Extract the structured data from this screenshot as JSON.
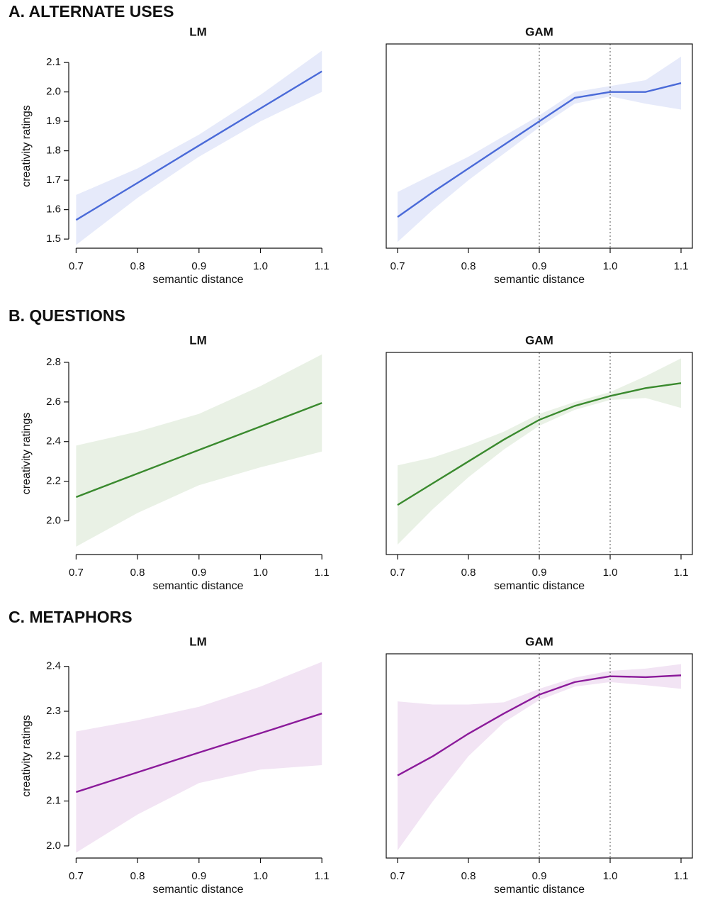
{
  "sections": [
    "A. ALTERNATE USES",
    "B. QUESTIONS",
    "C. METAPHORS"
  ],
  "chart_data": [
    {
      "type": "line",
      "title": "LM",
      "x_label": "semantic distance",
      "y_label": "creativity ratings",
      "x": [
        0.7,
        0.8,
        0.9,
        1.0,
        1.1
      ],
      "series": [
        {
          "color": "#4a6ad8",
          "band_color": "#e6eafa",
          "values": [
            1.565,
            1.691,
            1.818,
            1.944,
            2.07
          ],
          "lower": [
            1.48,
            1.64,
            1.78,
            1.9,
            2.0
          ],
          "upper": [
            1.65,
            1.74,
            1.855,
            1.99,
            2.14
          ]
        }
      ],
      "xlim": [
        0.688,
        1.109
      ],
      "ylim": [
        1.469,
        2.163
      ],
      "xticks": [
        0.7,
        0.8,
        0.9,
        {
          "value": 1.0,
          "label": "1.0"
        },
        1.1
      ],
      "yticks": [
        1.5,
        1.6,
        1.7,
        1.8,
        1.9,
        {
          "value": 2.0,
          "label": "2.0"
        },
        2.1
      ]
    },
    {
      "type": "line",
      "title": "GAM",
      "x_label": "semantic distance",
      "x": [
        0.7,
        0.75,
        0.8,
        0.85,
        0.9,
        0.95,
        1.0,
        1.05,
        1.1
      ],
      "series": [
        {
          "color": "#4a6ad8",
          "band_color": "#e6eafa",
          "values": [
            1.575,
            1.66,
            1.74,
            1.82,
            1.9,
            1.98,
            2.0,
            2.0,
            2.03
          ],
          "lower": [
            1.49,
            1.6,
            1.7,
            1.79,
            1.88,
            1.96,
            1.985,
            1.96,
            1.94
          ],
          "upper": [
            1.66,
            1.72,
            1.78,
            1.85,
            1.92,
            2.0,
            2.02,
            2.04,
            2.12
          ]
        }
      ],
      "xlim": [
        0.684,
        1.116
      ],
      "ylim": [
        1.469,
        2.163
      ],
      "xticks": [
        0.7,
        0.8,
        0.9,
        {
          "value": 1.0,
          "label": "1.0"
        },
        1.1
      ],
      "vlines": [
        0.9,
        1.0
      ]
    },
    {
      "type": "line",
      "title": "LM",
      "x_label": "semantic distance",
      "y_label": "creativity ratings",
      "x": [
        0.7,
        0.8,
        0.9,
        1.0,
        1.1
      ],
      "series": [
        {
          "color": "#3a8a2e",
          "band_color": "#e9f1e5",
          "values": [
            2.12,
            2.239,
            2.358,
            2.476,
            2.595
          ],
          "lower": [
            1.87,
            2.04,
            2.18,
            2.27,
            2.35
          ],
          "upper": [
            2.38,
            2.45,
            2.54,
            2.68,
            2.84
          ]
        }
      ],
      "xlim": [
        0.688,
        1.109
      ],
      "ylim": [
        1.83,
        2.85
      ],
      "xticks": [
        0.7,
        0.8,
        0.9,
        {
          "value": 1.0,
          "label": "1.0"
        },
        1.1
      ],
      "yticks": [
        {
          "value": 2.0,
          "label": "2.0"
        },
        2.2,
        2.4,
        2.6,
        2.8
      ]
    },
    {
      "type": "line",
      "title": "GAM",
      "x_label": "semantic distance",
      "x": [
        0.7,
        0.75,
        0.8,
        0.85,
        0.9,
        0.95,
        1.0,
        1.05,
        1.1
      ],
      "series": [
        {
          "color": "#3a8a2e",
          "band_color": "#e9f1e5",
          "values": [
            2.08,
            2.19,
            2.3,
            2.41,
            2.51,
            2.58,
            2.63,
            2.67,
            2.695
          ],
          "lower": [
            1.88,
            2.06,
            2.22,
            2.36,
            2.48,
            2.56,
            2.61,
            2.62,
            2.57
          ],
          "upper": [
            2.28,
            2.32,
            2.38,
            2.45,
            2.54,
            2.6,
            2.65,
            2.73,
            2.82
          ]
        }
      ],
      "xlim": [
        0.684,
        1.116
      ],
      "ylim": [
        1.83,
        2.85
      ],
      "xticks": [
        0.7,
        0.8,
        0.9,
        {
          "value": 1.0,
          "label": "1.0"
        },
        1.1
      ],
      "vlines": [
        0.9,
        1.0
      ]
    },
    {
      "type": "line",
      "title": "LM",
      "x_label": "semantic distance",
      "y_label": "creativity ratings",
      "x": [
        0.7,
        0.8,
        0.9,
        1.0,
        1.1
      ],
      "series": [
        {
          "color": "#8b1a9a",
          "band_color": "#f2e4f4",
          "values": [
            2.12,
            2.164,
            2.208,
            2.251,
            2.295
          ],
          "lower": [
            1.985,
            2.07,
            2.14,
            2.17,
            2.18
          ],
          "upper": [
            2.255,
            2.28,
            2.31,
            2.355,
            2.41
          ]
        }
      ],
      "xlim": [
        0.688,
        1.109
      ],
      "ylim": [
        1.973,
        2.428
      ],
      "xticks": [
        0.7,
        0.8,
        0.9,
        {
          "value": 1.0,
          "label": "1.0"
        },
        1.1
      ],
      "yticks": [
        {
          "value": 2.0,
          "label": "2.0"
        },
        2.1,
        2.2,
        2.3,
        2.4
      ]
    },
    {
      "type": "line",
      "title": "GAM",
      "x_label": "semantic distance",
      "x": [
        0.7,
        0.75,
        0.8,
        0.85,
        0.9,
        0.95,
        1.0,
        1.05,
        1.1
      ],
      "series": [
        {
          "color": "#8b1a9a",
          "band_color": "#f2e4f4",
          "values": [
            2.157,
            2.2,
            2.25,
            2.295,
            2.337,
            2.365,
            2.378,
            2.376,
            2.38
          ],
          "lower": [
            1.99,
            2.1,
            2.2,
            2.275,
            2.325,
            2.355,
            2.365,
            2.358,
            2.35
          ],
          "upper": [
            2.322,
            2.315,
            2.315,
            2.32,
            2.35,
            2.375,
            2.39,
            2.395,
            2.405
          ]
        }
      ],
      "xlim": [
        0.684,
        1.116
      ],
      "ylim": [
        1.973,
        2.428
      ],
      "xticks": [
        0.7,
        0.8,
        0.9,
        {
          "value": 1.0,
          "label": "1.0"
        },
        1.1
      ],
      "vlines": [
        0.9,
        1.0
      ]
    }
  ]
}
